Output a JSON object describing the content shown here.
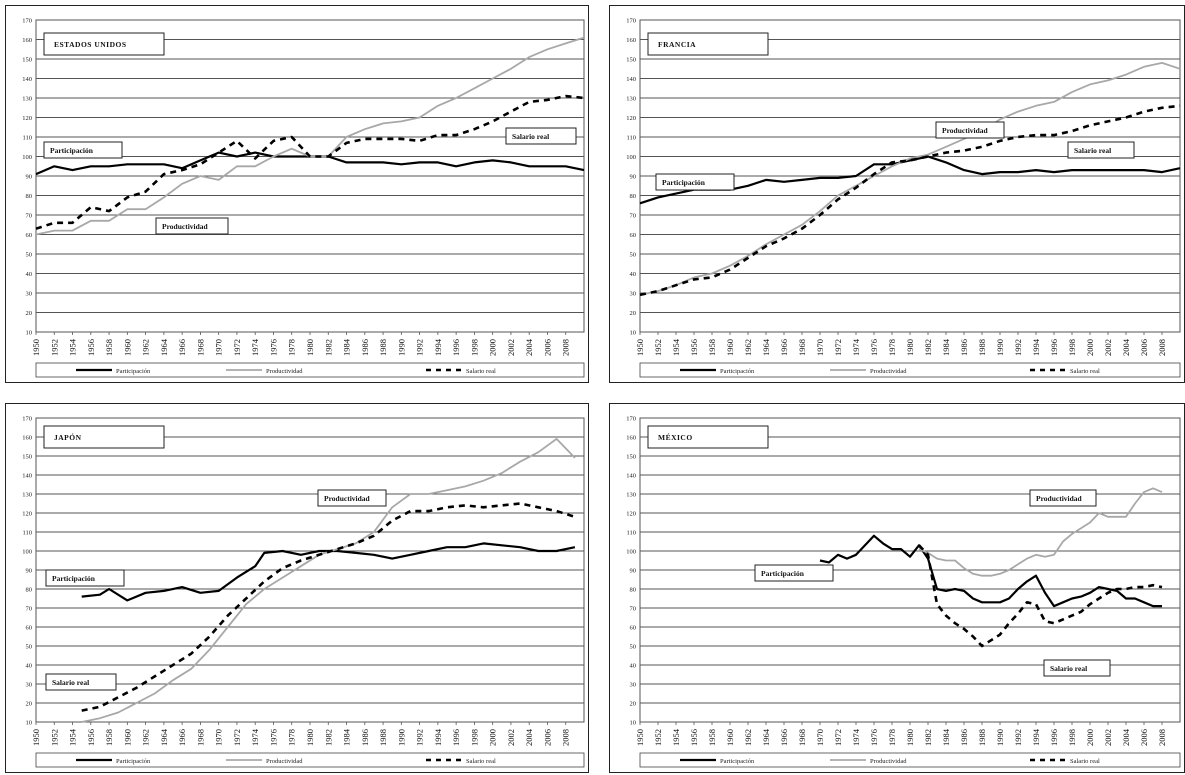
{
  "chart_data": [
    {
      "type": "line",
      "title": "ESTADOS UNIDOS",
      "ylim": [
        10,
        170
      ],
      "yticks": [
        10,
        20,
        30,
        40,
        50,
        60,
        70,
        80,
        90,
        100,
        110,
        120,
        130,
        140,
        150,
        160,
        170
      ],
      "xticks": [
        "1950",
        "1952",
        "1954",
        "1956",
        "1958",
        "1960",
        "1962",
        "1964",
        "1966",
        "1968",
        "1970",
        "1972",
        "1974",
        "1976",
        "1978",
        "1980",
        "1982",
        "1984",
        "1986",
        "1988",
        "1990",
        "1992",
        "1994",
        "1996",
        "1998",
        "2000",
        "2002",
        "2004",
        "2006",
        "2008"
      ],
      "grid": true,
      "legend_position": "bottom",
      "legend": [
        "Participación",
        "Productividad",
        "Salario real"
      ],
      "annotations": [
        "Participación",
        "Productividad",
        "Salario real"
      ],
      "series": [
        {
          "name": "Participación",
          "style": "solid-black",
          "x": [
            1950,
            1952,
            1954,
            1956,
            1958,
            1960,
            1962,
            1964,
            1966,
            1968,
            1970,
            1972,
            1974,
            1976,
            1978,
            1980,
            1982,
            1984,
            1986,
            1988,
            1990,
            1992,
            1994,
            1996,
            1998,
            2000,
            2002,
            2004,
            2006,
            2008,
            2010
          ],
          "values": [
            91,
            95,
            93,
            95,
            95,
            96,
            96,
            96,
            94,
            98,
            102,
            100,
            102,
            100,
            100,
            100,
            100,
            97,
            97,
            97,
            96,
            97,
            97,
            95,
            97,
            98,
            97,
            95,
            95,
            95,
            93
          ]
        },
        {
          "name": "Productividad",
          "style": "solid-gray",
          "x": [
            1950,
            1952,
            1954,
            1956,
            1958,
            1960,
            1962,
            1964,
            1966,
            1968,
            1970,
            1972,
            1974,
            1976,
            1978,
            1980,
            1982,
            1984,
            1986,
            1988,
            1990,
            1992,
            1994,
            1996,
            1998,
            2000,
            2002,
            2004,
            2006,
            2008,
            2010
          ],
          "values": [
            60,
            62,
            62,
            67,
            67,
            73,
            73,
            79,
            86,
            90,
            88,
            95,
            95,
            100,
            104,
            100,
            100,
            110,
            114,
            117,
            118,
            120,
            126,
            130,
            135,
            140,
            145,
            151,
            155,
            158,
            161
          ]
        },
        {
          "name": "Salario real",
          "style": "dashed-black",
          "x": [
            1950,
            1952,
            1954,
            1956,
            1958,
            1960,
            1962,
            1964,
            1966,
            1968,
            1970,
            1972,
            1974,
            1976,
            1978,
            1980,
            1982,
            1984,
            1986,
            1988,
            1990,
            1992,
            1994,
            1996,
            1998,
            2000,
            2002,
            2004,
            2006,
            2008,
            2010
          ],
          "values": [
            63,
            66,
            66,
            74,
            72,
            79,
            82,
            91,
            93,
            96,
            102,
            108,
            99,
            108,
            110,
            100,
            100,
            107,
            109,
            109,
            109,
            108,
            111,
            111,
            114,
            118,
            123,
            128,
            129,
            131,
            130
          ]
        }
      ]
    },
    {
      "type": "line",
      "title": "FRANCIA",
      "ylim": [
        10,
        170
      ],
      "yticks": [
        10,
        20,
        30,
        40,
        50,
        60,
        70,
        80,
        90,
        100,
        110,
        120,
        130,
        140,
        150,
        160,
        170
      ],
      "xticks": [
        "1950",
        "1952",
        "1954",
        "1956",
        "1958",
        "1960",
        "1962",
        "1964",
        "1966",
        "1968",
        "1970",
        "1972",
        "1974",
        "1976",
        "1978",
        "1980",
        "1982",
        "1984",
        "1986",
        "1988",
        "1990",
        "1992",
        "1994",
        "1996",
        "1998",
        "2000",
        "2002",
        "2004",
        "2006",
        "2008"
      ],
      "grid": true,
      "legend_position": "bottom",
      "legend": [
        "Participación",
        "Productividad",
        "Salario real"
      ],
      "annotations": [
        "Participación",
        "Productividad",
        "Salario real"
      ],
      "series": [
        {
          "name": "Participación",
          "style": "solid-black",
          "x": [
            1950,
            1952,
            1954,
            1956,
            1958,
            1960,
            1962,
            1964,
            1966,
            1968,
            1970,
            1972,
            1974,
            1976,
            1978,
            1980,
            1982,
            1984,
            1986,
            1988,
            1990,
            1992,
            1994,
            1996,
            1998,
            2000,
            2002,
            2004,
            2006,
            2008,
            2010
          ],
          "values": [
            76,
            79,
            81,
            83,
            83,
            83,
            85,
            88,
            87,
            88,
            89,
            89,
            90,
            96,
            96,
            98,
            100,
            97,
            93,
            91,
            92,
            92,
            93,
            92,
            93,
            93,
            93,
            93,
            93,
            92,
            94
          ]
        },
        {
          "name": "Productividad",
          "style": "solid-gray",
          "x": [
            1950,
            1952,
            1954,
            1956,
            1958,
            1960,
            1962,
            1964,
            1966,
            1968,
            1970,
            1972,
            1974,
            1976,
            1978,
            1980,
            1982,
            1984,
            1986,
            1988,
            1990,
            1992,
            1994,
            1996,
            1998,
            2000,
            2002,
            2004,
            2006,
            2008,
            2010
          ],
          "values": [
            29,
            31,
            34,
            38,
            40,
            44,
            49,
            55,
            60,
            65,
            72,
            80,
            85,
            90,
            95,
            99,
            101,
            105,
            109,
            113,
            119,
            123,
            126,
            128,
            133,
            137,
            139,
            142,
            146,
            148,
            145
          ]
        },
        {
          "name": "Salario real",
          "style": "dashed-black",
          "x": [
            1950,
            1952,
            1954,
            1956,
            1958,
            1960,
            1962,
            1964,
            1966,
            1968,
            1970,
            1972,
            1974,
            1976,
            1978,
            1980,
            1982,
            1984,
            1986,
            1988,
            1990,
            1992,
            1994,
            1996,
            1998,
            2000,
            2002,
            2004,
            2006,
            2008,
            2010
          ],
          "values": [
            29,
            31,
            34,
            37,
            38,
            42,
            48,
            54,
            58,
            63,
            70,
            78,
            84,
            91,
            97,
            98,
            100,
            102,
            103,
            105,
            108,
            110,
            111,
            111,
            113,
            116,
            118,
            120,
            123,
            125,
            126
          ]
        }
      ]
    },
    {
      "type": "line",
      "title": "JAPÓN",
      "ylim": [
        10,
        170
      ],
      "yticks": [
        10,
        20,
        30,
        40,
        50,
        60,
        70,
        80,
        90,
        100,
        110,
        120,
        130,
        140,
        150,
        160,
        170
      ],
      "xticks": [
        "1950",
        "1952",
        "1954",
        "1956",
        "1958",
        "1960",
        "1962",
        "1964",
        "1966",
        "1968",
        "1970",
        "1972",
        "1974",
        "1976",
        "1978",
        "1980",
        "1982",
        "1984",
        "1986",
        "1988",
        "1990",
        "1992",
        "1994",
        "1996",
        "1998",
        "2000",
        "2002",
        "2004",
        "2006",
        "2008"
      ],
      "grid": true,
      "legend_position": "bottom",
      "legend": [
        "Participación",
        "Productividad",
        "Salario real"
      ],
      "annotations": [
        "Participación",
        "Productividad",
        "Salario real"
      ],
      "series": [
        {
          "name": "Participación",
          "style": "solid-black",
          "x": [
            1955,
            1957,
            1958,
            1960,
            1962,
            1964,
            1966,
            1968,
            1970,
            1972,
            1974,
            1975,
            1977,
            1979,
            1981,
            1983,
            1985,
            1987,
            1989,
            1991,
            1993,
            1995,
            1997,
            1999,
            2001,
            2003,
            2005,
            2007,
            2009
          ],
          "values": [
            76,
            77,
            80,
            74,
            78,
            79,
            81,
            78,
            79,
            86,
            92,
            99,
            100,
            98,
            100,
            100,
            99,
            98,
            96,
            98,
            100,
            102,
            102,
            104,
            103,
            102,
            100,
            100,
            102
          ]
        },
        {
          "name": "Productividad",
          "style": "solid-gray",
          "x": [
            1955,
            1957,
            1959,
            1961,
            1963,
            1965,
            1967,
            1969,
            1971,
            1973,
            1975,
            1977,
            1979,
            1981,
            1983,
            1985,
            1987,
            1989,
            1991,
            1993,
            1995,
            1997,
            1999,
            2001,
            2003,
            2005,
            2007,
            2009
          ],
          "values": [
            10,
            12,
            15,
            20,
            25,
            32,
            38,
            48,
            60,
            72,
            80,
            86,
            92,
            98,
            101,
            104,
            110,
            123,
            130,
            130,
            132,
            134,
            137,
            141,
            147,
            152,
            159,
            149
          ]
        },
        {
          "name": "Salario real",
          "style": "dashed-black",
          "x": [
            1955,
            1957,
            1959,
            1961,
            1963,
            1965,
            1967,
            1969,
            1971,
            1973,
            1975,
            1977,
            1979,
            1981,
            1983,
            1985,
            1987,
            1989,
            1991,
            1993,
            1995,
            1997,
            1999,
            2001,
            2003,
            2005,
            2007,
            2009
          ],
          "values": [
            16,
            18,
            23,
            28,
            34,
            40,
            46,
            55,
            66,
            75,
            84,
            91,
            95,
            98,
            101,
            104,
            108,
            116,
            121,
            121,
            123,
            124,
            123,
            124,
            125,
            123,
            121,
            118
          ]
        }
      ]
    },
    {
      "type": "line",
      "title": "MÉXICO",
      "ylim": [
        10,
        170
      ],
      "yticks": [
        10,
        20,
        30,
        40,
        50,
        60,
        70,
        80,
        90,
        100,
        110,
        120,
        130,
        140,
        150,
        160,
        170
      ],
      "xticks": [
        "1950",
        "1952",
        "1954",
        "1956",
        "1958",
        "1960",
        "1962",
        "1964",
        "1966",
        "1968",
        "1970",
        "1972",
        "1974",
        "1976",
        "1978",
        "1980",
        "1982",
        "1984",
        "1986",
        "1988",
        "1990",
        "1992",
        "1994",
        "1996",
        "1998",
        "2000",
        "2002",
        "2004",
        "2006",
        "2008"
      ],
      "grid": true,
      "legend_position": "bottom",
      "legend": [
        "Participación",
        "Productividad",
        "Salario real"
      ],
      "annotations": [
        "Participación",
        "Productividad",
        "Salario real"
      ],
      "series": [
        {
          "name": "Participación",
          "style": "solid-black",
          "x": [
            1970,
            1971,
            1972,
            1973,
            1974,
            1975,
            1976,
            1977,
            1978,
            1979,
            1980,
            1981,
            1982,
            1983,
            1984,
            1985,
            1986,
            1987,
            1988,
            1989,
            1990,
            1991,
            1992,
            1993,
            1994,
            1995,
            1996,
            1997,
            1998,
            1999,
            2000,
            2001,
            2002,
            2003,
            2004,
            2005,
            2006,
            2007,
            2008
          ],
          "values": [
            95,
            94,
            98,
            96,
            98,
            103,
            108,
            104,
            101,
            101,
            97,
            103,
            96,
            80,
            79,
            80,
            79,
            75,
            73,
            73,
            73,
            75,
            80,
            84,
            87,
            78,
            71,
            73,
            75,
            76,
            78,
            81,
            80,
            79,
            75,
            75,
            73,
            71,
            71
          ]
        },
        {
          "name": "Productividad",
          "style": "solid-gray",
          "x": [
            1981,
            1982,
            1983,
            1984,
            1985,
            1986,
            1987,
            1988,
            1989,
            1990,
            1991,
            1992,
            1993,
            1994,
            1995,
            1996,
            1997,
            1998,
            1999,
            2000,
            2001,
            2002,
            2003,
            2004,
            2005,
            2006,
            2007,
            2008
          ],
          "values": [
            101,
            99,
            96,
            95,
            95,
            91,
            88,
            87,
            87,
            88,
            90,
            93,
            96,
            98,
            97,
            98,
            105,
            109,
            112,
            115,
            120,
            118,
            118,
            118,
            125,
            131,
            133,
            131
          ]
        },
        {
          "name": "Salario real",
          "style": "dashed-black",
          "x": [
            1981,
            1982,
            1983,
            1984,
            1985,
            1986,
            1987,
            1988,
            1989,
            1990,
            1991,
            1992,
            1993,
            1994,
            1995,
            1996,
            1997,
            1998,
            1999,
            2000,
            2001,
            2002,
            2003,
            2004,
            2005,
            2006,
            2007,
            2008
          ],
          "values": [
            103,
            98,
            72,
            66,
            62,
            59,
            55,
            50,
            53,
            56,
            62,
            67,
            73,
            72,
            63,
            62,
            64,
            66,
            68,
            72,
            75,
            78,
            80,
            80,
            81,
            81,
            82,
            81
          ]
        }
      ]
    }
  ]
}
